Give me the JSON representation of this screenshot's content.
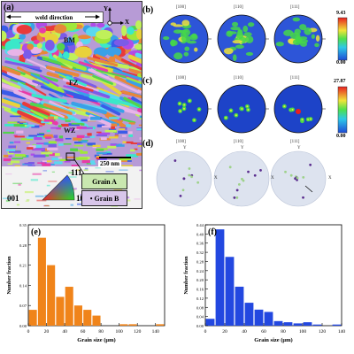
{
  "panel_a": {
    "label": "(a)",
    "weld_direction": "weld direction",
    "axis_y": "Y",
    "axis_x": "X",
    "regions": [
      "BM",
      "FZ",
      "WZ"
    ],
    "scale_bar": "250 nm",
    "ipf_key": {
      "top": "111",
      "left": "001",
      "right": "101"
    },
    "grain_legend": {
      "a": "Grain A",
      "b": "• Grain B"
    },
    "colors": {
      "grain_a": "#c9e7b0",
      "grain_b": "#d8c6ea"
    }
  },
  "panel_b": {
    "label": "(b)",
    "headers": [
      "[100]",
      "[110]",
      "[111]"
    ],
    "colorbar": {
      "max": "9.43",
      "min": "0.00"
    }
  },
  "panel_c": {
    "label": "(c)",
    "headers": [
      "[100]",
      "[110]",
      "[111]"
    ],
    "colorbar": {
      "max": "27.87",
      "min": "0.00"
    }
  },
  "panel_d": {
    "label": "(d)",
    "headers": [
      "[100]",
      "[110]",
      "[111]"
    ],
    "axis_y": "Y",
    "axis_x": "X",
    "colors": {
      "grain_a": "#9ed28a",
      "grain_b": "#5b2e8f",
      "disk": "#dde3ef"
    }
  },
  "chart_data": [
    {
      "type": "bar",
      "label": "(e)",
      "xlabel": "Grain size (μm)",
      "ylabel": "Number fraction",
      "bin_width": 10,
      "x": [
        5,
        15,
        25,
        35,
        45,
        55,
        65,
        75,
        85,
        95,
        105,
        115,
        125,
        135,
        145
      ],
      "values": [
        0.055,
        0.305,
        0.21,
        0.1,
        0.135,
        0.07,
        0.055,
        0.035,
        0.0,
        0.0,
        0.005,
        0.005,
        0.0,
        0.0,
        0.005
      ],
      "ylim": [
        0,
        0.35
      ],
      "xlim": [
        0,
        150
      ],
      "yticks": [
        "0.00",
        "0.07",
        "0.14",
        "0.21",
        "0.28",
        "0.35"
      ],
      "xticks": [
        "0",
        "20",
        "40",
        "60",
        "80",
        "100",
        "120",
        "140"
      ],
      "color": "#f0841a"
    },
    {
      "type": "bar",
      "label": "(f)",
      "xlabel": "Grain size (μm)",
      "ylabel": "Number fraction",
      "bin_width": 10,
      "x": [
        5,
        15,
        25,
        35,
        45,
        55,
        65,
        75,
        85,
        95,
        105,
        115,
        125,
        135
      ],
      "values": [
        0.03,
        0.42,
        0.3,
        0.17,
        0.1,
        0.07,
        0.06,
        0.02,
        0.015,
        0.01,
        0.015,
        0.005,
        0.0,
        0.005
      ],
      "ylim": [
        0,
        0.44
      ],
      "xlim": [
        0,
        140
      ],
      "yticks": [
        "0.00",
        "0.04",
        "0.08",
        "0.12",
        "0.16",
        "0.20",
        "0.24",
        "0.28",
        "0.32",
        "0.36",
        "0.40",
        "0.44"
      ],
      "xticks": [
        "0",
        "20",
        "40",
        "60",
        "80",
        "100",
        "120",
        "140"
      ],
      "color": "#2348e0"
    }
  ]
}
